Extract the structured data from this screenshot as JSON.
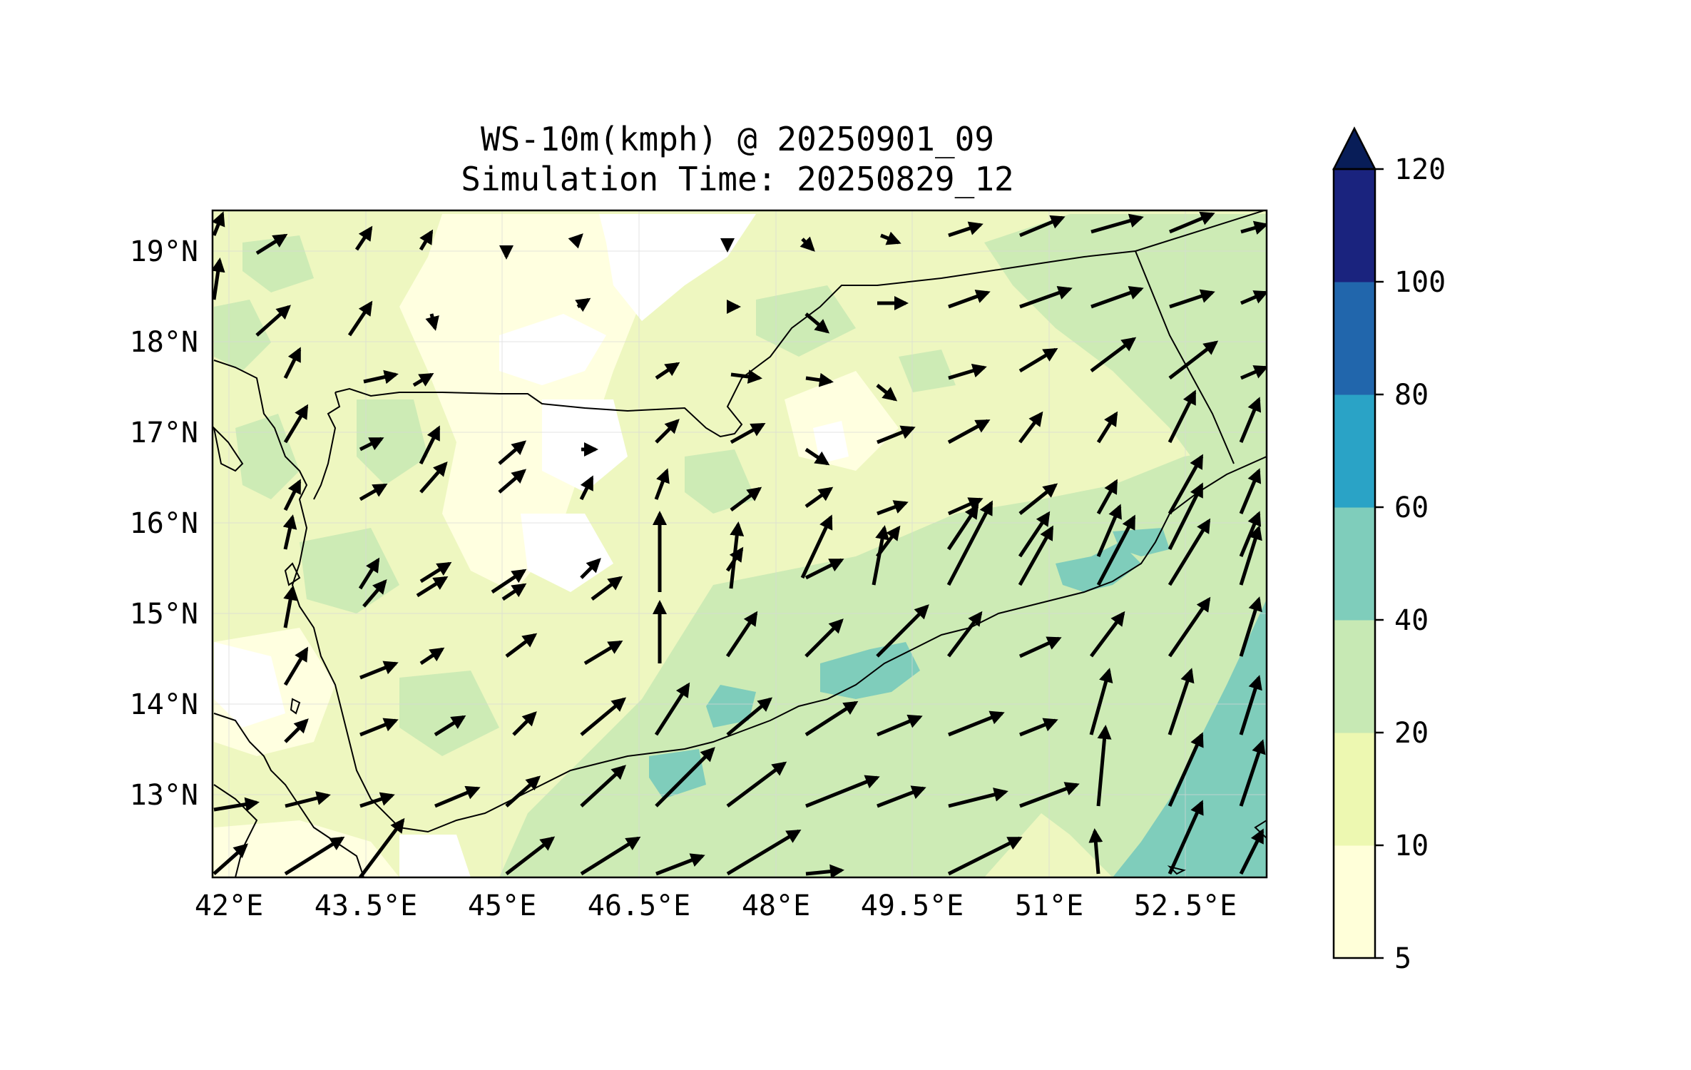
{
  "title": {
    "line1": "WS-10m(kmph) @ 20250901_09",
    "line2": "Simulation Time: 20250829_12"
  },
  "map": {
    "x_tick_labels": [
      "42°E",
      "43.5°E",
      "45°E",
      "46.5°E",
      "48°E",
      "49.5°E",
      "51°E",
      "52.5°E"
    ],
    "y_tick_labels": [
      "19°N",
      "18°N",
      "17°N",
      "16°N",
      "15°N",
      "14°N",
      "13°N"
    ],
    "lon_range": [
      42.0,
      53.8
    ],
    "lat_range": [
      12.1,
      19.45
    ],
    "grid": true
  },
  "colorbar": {
    "levels": [
      "5",
      "10",
      "20",
      "40",
      "60",
      "80",
      "100",
      "120"
    ],
    "colors": [
      "#ffffd9",
      "#edf8b1",
      "#c7e9b4",
      "#7fcdbb",
      "#2aa3c6",
      "#2166ac",
      "#1a237e"
    ],
    "extend_color": "#081d58",
    "extend": "max"
  },
  "colors": {
    "background": "#ffffff",
    "land_base": "#eef7c0",
    "arrow": "#000000",
    "border": "#000000"
  }
}
